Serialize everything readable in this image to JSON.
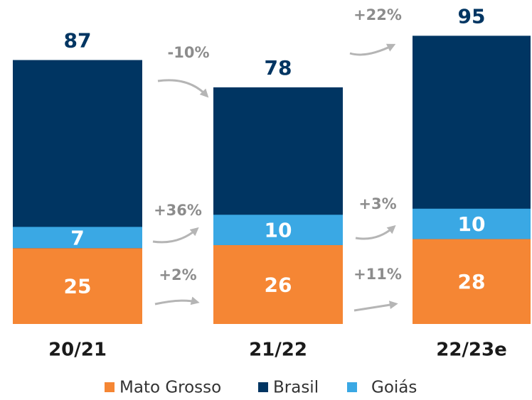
{
  "chart_data": {
    "type": "bar",
    "categories": [
      "20/21",
      "21/22",
      "22/23e"
    ],
    "series": [
      {
        "name": "Mato Grosso",
        "color": "#f58634",
        "values": [
          25,
          26,
          28
        ]
      },
      {
        "name": "Brasil",
        "color": "#003562",
        "values": [
          87,
          78,
          95
        ]
      },
      {
        "name": "Goiás",
        "color": "#3aa8e4",
        "values": [
          7,
          10,
          10
        ]
      }
    ],
    "annotations": [
      "-10%",
      "+22%",
      "+36%",
      "+3%",
      "+2%",
      "+11%"
    ],
    "ylim": [
      0,
      100
    ]
  }
}
